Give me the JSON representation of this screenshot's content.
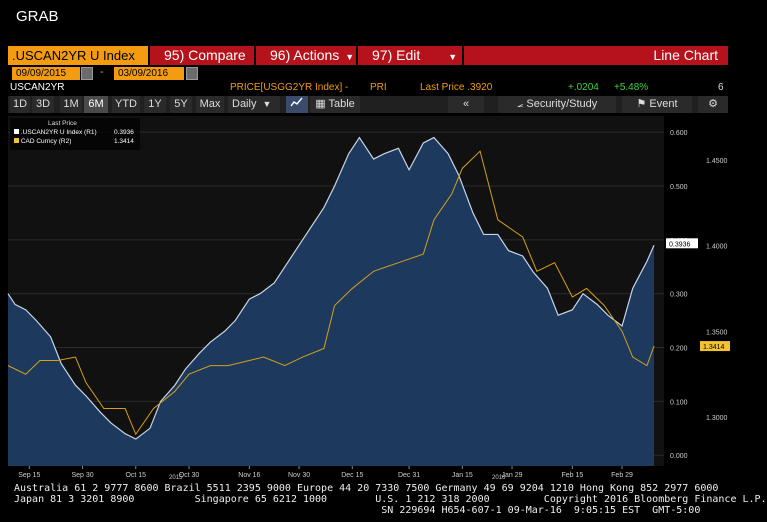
{
  "window": {
    "title": "GRAB"
  },
  "header": {
    "ticker": ".USCAN2YR U Index",
    "compare": "95) Compare",
    "actions": "96) Actions",
    "edit": "97) Edit",
    "chart_type": "Line Chart",
    "start_date": "09/09/2015",
    "end_date": "03/09/2016",
    "date_sep": "-"
  },
  "infoline": {
    "security": "USCAN2YR",
    "price_label": "PRICE[USGG2YR Index] -",
    "pri": "PRI",
    "last_price": "Last Price .3920",
    "change": "+.0204",
    "change_pct": "+5.48%",
    "extra": "6"
  },
  "toolbar": {
    "periods": [
      "1D",
      "3D",
      "1M",
      "6M",
      "YTD",
      "1Y",
      "5Y",
      "Max"
    ],
    "selected_period": "6M",
    "frequency": "Daily",
    "table": "Table",
    "security_study": "Security/Study",
    "event": "Event"
  },
  "legend": {
    "header": "Last Price",
    "series": [
      {
        "name": ".USCAN2YR U Index  (R1)",
        "value": "0.3936",
        "color": "#ffffff"
      },
      {
        "name": "CAD Curncy  (R2)",
        "value": "1.3414",
        "color": "#f2c230"
      }
    ]
  },
  "colors": {
    "accent": "#f39c12",
    "button_red": "#b5121b",
    "area_fill": "#1d3a5e",
    "line_cad": "#d4a017"
  },
  "chart_data": {
    "type": "area",
    "x_ticks": [
      "Sep 15",
      "Sep 30",
      "Oct 15",
      "Oct 30",
      "Nov 16",
      "Nov 30",
      "Dec 15",
      "Dec 31",
      "Jan 15",
      "Jan 29",
      "Feb 15",
      "Feb 29"
    ],
    "year_labels": [
      "2015",
      "2016"
    ],
    "axis_r1": {
      "ticks": [
        "0.000",
        "0.100",
        "0.200",
        "0.300",
        "0.400",
        "0.500",
        "0.600"
      ],
      "ylim": [
        -0.02,
        0.63
      ]
    },
    "axis_r2": {
      "ticks": [
        "1.3000",
        "1.3500",
        "1.4000",
        "1.4500"
      ],
      "ylim": [
        1.2715,
        1.4755
      ]
    },
    "last_value_labels": {
      "r1": "0.3936",
      "r2": "1.3414"
    },
    "series": [
      {
        "name": ".USCAN2YR U Index",
        "axis": "R1",
        "style": "area",
        "dates": [
          "2015-09-09",
          "2015-09-11",
          "2015-09-14",
          "2015-09-17",
          "2015-09-21",
          "2015-09-24",
          "2015-09-28",
          "2015-10-01",
          "2015-10-05",
          "2015-10-08",
          "2015-10-12",
          "2015-10-15",
          "2015-10-19",
          "2015-10-22",
          "2015-10-26",
          "2015-10-29",
          "2015-11-02",
          "2015-11-05",
          "2015-11-09",
          "2015-11-12",
          "2015-11-16",
          "2015-11-19",
          "2015-11-23",
          "2015-11-26",
          "2015-11-30",
          "2015-12-03",
          "2015-12-07",
          "2015-12-10",
          "2015-12-14",
          "2015-12-17",
          "2015-12-21",
          "2015-12-24",
          "2015-12-28",
          "2015-12-31",
          "2016-01-04",
          "2016-01-07",
          "2016-01-11",
          "2016-01-14",
          "2016-01-18",
          "2016-01-21",
          "2016-01-25",
          "2016-01-28",
          "2016-02-01",
          "2016-02-04",
          "2016-02-08",
          "2016-02-11",
          "2016-02-15",
          "2016-02-18",
          "2016-02-22",
          "2016-02-25",
          "2016-02-29",
          "2016-03-03",
          "2016-03-07",
          "2016-03-09"
        ],
        "values": [
          0.3,
          0.28,
          0.27,
          0.25,
          0.22,
          0.17,
          0.13,
          0.11,
          0.08,
          0.06,
          0.04,
          0.03,
          0.05,
          0.1,
          0.13,
          0.16,
          0.19,
          0.21,
          0.23,
          0.25,
          0.29,
          0.3,
          0.32,
          0.35,
          0.39,
          0.42,
          0.46,
          0.5,
          0.56,
          0.59,
          0.55,
          0.56,
          0.57,
          0.53,
          0.58,
          0.59,
          0.56,
          0.52,
          0.45,
          0.41,
          0.41,
          0.38,
          0.37,
          0.34,
          0.31,
          0.26,
          0.27,
          0.3,
          0.28,
          0.26,
          0.24,
          0.31,
          0.36,
          0.39
        ]
      },
      {
        "name": "CAD Curncy",
        "axis": "R2",
        "style": "line",
        "dates": [
          "2015-09-09",
          "2015-09-14",
          "2015-09-18",
          "2015-09-23",
          "2015-09-28",
          "2015-10-01",
          "2015-10-06",
          "2015-10-12",
          "2015-10-15",
          "2015-10-20",
          "2015-10-26",
          "2015-10-30",
          "2015-11-05",
          "2015-11-10",
          "2015-11-16",
          "2015-11-20",
          "2015-11-26",
          "2015-12-01",
          "2015-12-07",
          "2015-12-10",
          "2015-12-15",
          "2015-12-21",
          "2015-12-28",
          "2016-01-04",
          "2016-01-07",
          "2016-01-12",
          "2016-01-15",
          "2016-01-20",
          "2016-01-25",
          "2016-02-01",
          "2016-02-05",
          "2016-02-10",
          "2016-02-15",
          "2016-02-19",
          "2016-02-24",
          "2016-02-29",
          "2016-03-03",
          "2016-03-07",
          "2016-03-09"
        ],
        "values": [
          1.33,
          1.325,
          1.333,
          1.333,
          1.335,
          1.32,
          1.305,
          1.305,
          1.29,
          1.305,
          1.315,
          1.325,
          1.33,
          1.33,
          1.333,
          1.335,
          1.33,
          1.335,
          1.34,
          1.365,
          1.375,
          1.385,
          1.39,
          1.395,
          1.415,
          1.43,
          1.445,
          1.455,
          1.415,
          1.405,
          1.385,
          1.39,
          1.37,
          1.375,
          1.365,
          1.35,
          1.335,
          1.33,
          1.3414
        ]
      }
    ]
  },
  "footer": {
    "lines": [
      "Australia 61 2 9777 8600 Brazil 5511 2395 9000 Europe 44 20 7330 7500 Germany 49 69 9204 1210 Hong Kong 852 2977 6000",
      "Japan 81 3 3201 8900          Singapore 65 6212 1000        U.S. 1 212 318 2000         Copyright 2016 Bloomberg Finance L.P.",
      "                                                             SN 229694 H654-607-1 09-Mar-16  9:05:15 EST  GMT-5:00"
    ]
  }
}
